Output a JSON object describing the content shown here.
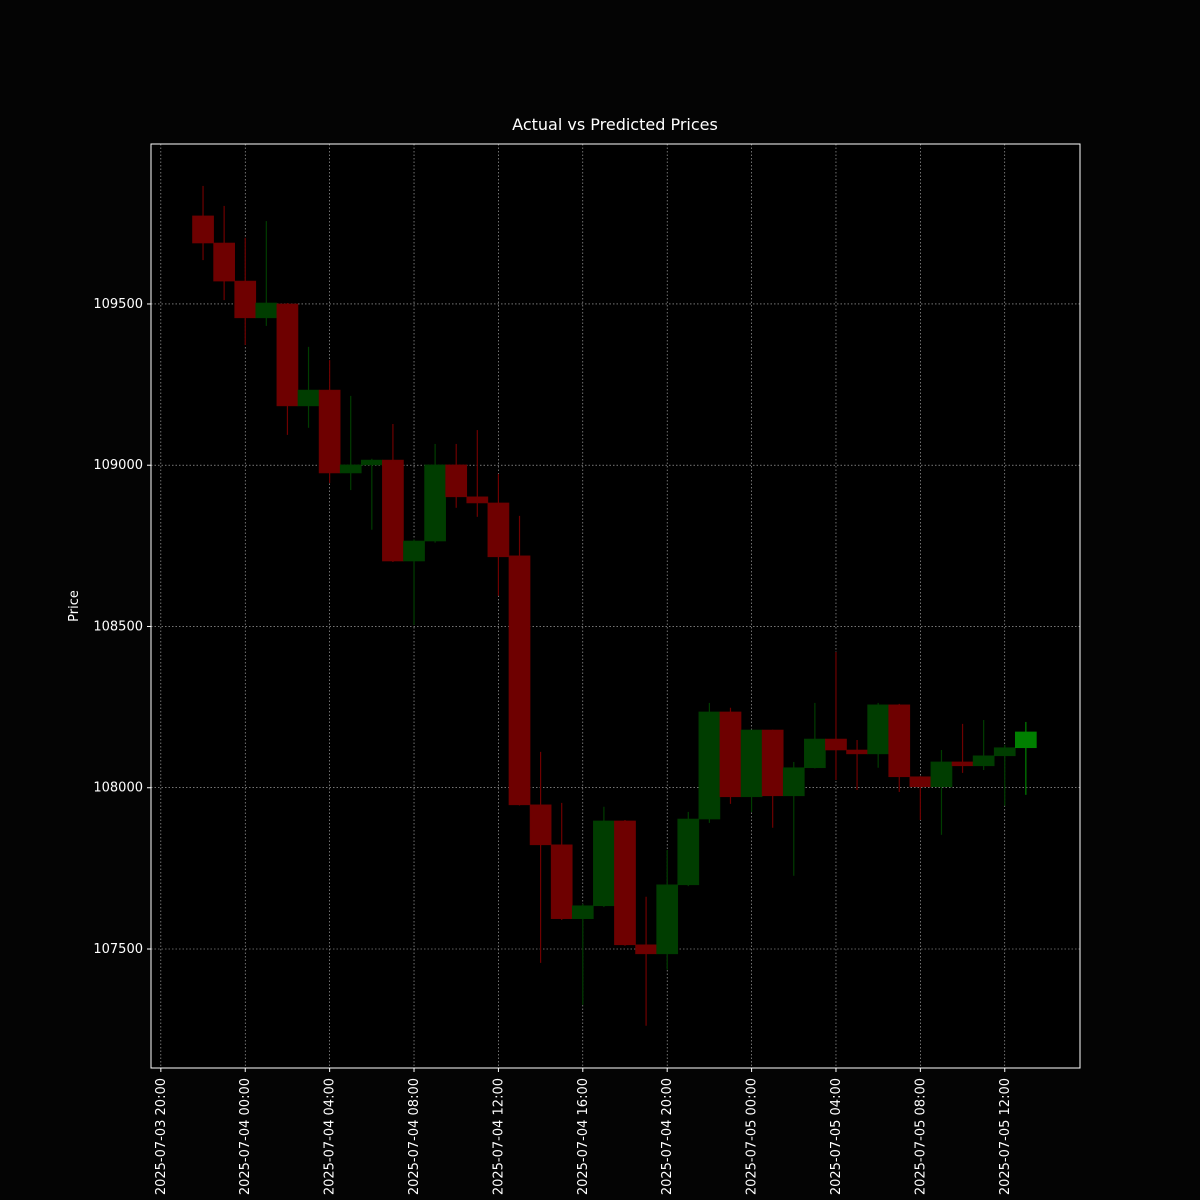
{
  "chart_data": {
    "type": "candlestick",
    "title": "Actual vs Predicted Prices",
    "y_label": "Price",
    "x": [
      "2025-07-03 22:00",
      "2025-07-03 23:00",
      "2025-07-04 00:00",
      "2025-07-04 01:00",
      "2025-07-04 02:00",
      "2025-07-04 03:00",
      "2025-07-04 04:00",
      "2025-07-04 05:00",
      "2025-07-04 06:00",
      "2025-07-04 07:00",
      "2025-07-04 08:00",
      "2025-07-04 09:00",
      "2025-07-04 10:00",
      "2025-07-04 11:00",
      "2025-07-04 12:00",
      "2025-07-04 13:00",
      "2025-07-04 14:00",
      "2025-07-04 15:00",
      "2025-07-04 16:00",
      "2025-07-04 17:00",
      "2025-07-04 18:00",
      "2025-07-04 19:00",
      "2025-07-04 20:00",
      "2025-07-04 21:00",
      "2025-07-04 22:00",
      "2025-07-04 23:00",
      "2025-07-05 00:00",
      "2025-07-05 01:00",
      "2025-07-05 02:00",
      "2025-07-05 03:00",
      "2025-07-05 04:00",
      "2025-07-05 05:00",
      "2025-07-05 06:00",
      "2025-07-05 07:00",
      "2025-07-05 08:00",
      "2025-07-05 09:00",
      "2025-07-05 10:00",
      "2025-07-05 11:00",
      "2025-07-05 12:00",
      "2025-07-05 13:00"
    ],
    "open": [
      109773,
      109689,
      109571,
      109457,
      109500,
      109184,
      109233,
      108976,
      109001,
      109016,
      108703,
      108765,
      109001,
      108902,
      108883,
      108719,
      107947,
      107823,
      107594,
      107634,
      107897,
      107513,
      107485,
      107699,
      107903,
      108235,
      107972,
      108179,
      107975,
      108062,
      108151,
      108117,
      108105,
      108257,
      108034,
      108003,
      108080,
      108068,
      108099,
      108124
    ],
    "high": [
      109866,
      109804,
      109705,
      109757,
      109503,
      109367,
      109326,
      109215,
      109020,
      109128,
      108770,
      109066,
      109066,
      109109,
      108973,
      108843,
      108111,
      107953,
      107640,
      107941,
      107900,
      107662,
      107807,
      107925,
      108263,
      108248,
      108180,
      108180,
      108080,
      108263,
      108421,
      108148,
      108263,
      108260,
      108036,
      108117,
      108198,
      108210,
      108133,
      108204
    ],
    "low": [
      109636,
      109512,
      109373,
      109432,
      109094,
      109116,
      108945,
      108923,
      108800,
      108700,
      108505,
      108760,
      108868,
      108840,
      108595,
      107945,
      107457,
      107590,
      107327,
      107630,
      107510,
      107262,
      107436,
      107695,
      107891,
      107950,
      107925,
      107876,
      107727,
      108060,
      108024,
      107993,
      108062,
      107987,
      107900,
      107854,
      108046,
      108055,
      107944,
      107978
    ],
    "close": [
      109689,
      109571,
      109457,
      109503,
      109184,
      109233,
      108976,
      109001,
      109016,
      108703,
      108765,
      109001,
      108902,
      108883,
      108716,
      107947,
      107823,
      107594,
      107634,
      107897,
      107513,
      107485,
      107699,
      107903,
      108235,
      107972,
      108179,
      107975,
      108062,
      108151,
      108117,
      108105,
      108257,
      108034,
      108003,
      108080,
      108068,
      108099,
      108124,
      108173
    ],
    "colors": [
      "#6e0000",
      "#6e0000",
      "#6e0000",
      "#003d00",
      "#6e0000",
      "#003d00",
      "#6e0000",
      "#003d00",
      "#003d00",
      "#6e0000",
      "#003d00",
      "#003d00",
      "#6e0000",
      "#6e0000",
      "#6e0000",
      "#6e0000",
      "#6e0000",
      "#6e0000",
      "#003d00",
      "#003d00",
      "#6e0000",
      "#6e0000",
      "#003d00",
      "#003d00",
      "#003d00",
      "#6e0000",
      "#003d00",
      "#6e0000",
      "#003d00",
      "#003d00",
      "#6e0000",
      "#6e0000",
      "#003d00",
      "#6e0000",
      "#6e0000",
      "#003d00",
      "#6e0000",
      "#003d00",
      "#003d00",
      "#008000"
    ],
    "xlim": [
      "2025-07-03 19:32",
      "2025-07-05 15:34"
    ],
    "xticks": [
      "2025-07-03 20:00",
      "2025-07-04 00:00",
      "2025-07-04 04:00",
      "2025-07-04 08:00",
      "2025-07-04 12:00",
      "2025-07-04 16:00",
      "2025-07-04 20:00",
      "2025-07-05 00:00",
      "2025-07-05 04:00",
      "2025-07-05 08:00",
      "2025-07-05 12:00"
    ],
    "ylim": [
      107131,
      109996
    ],
    "yticks": [
      107500,
      108000,
      108500,
      109000,
      109500
    ],
    "grid": true
  }
}
